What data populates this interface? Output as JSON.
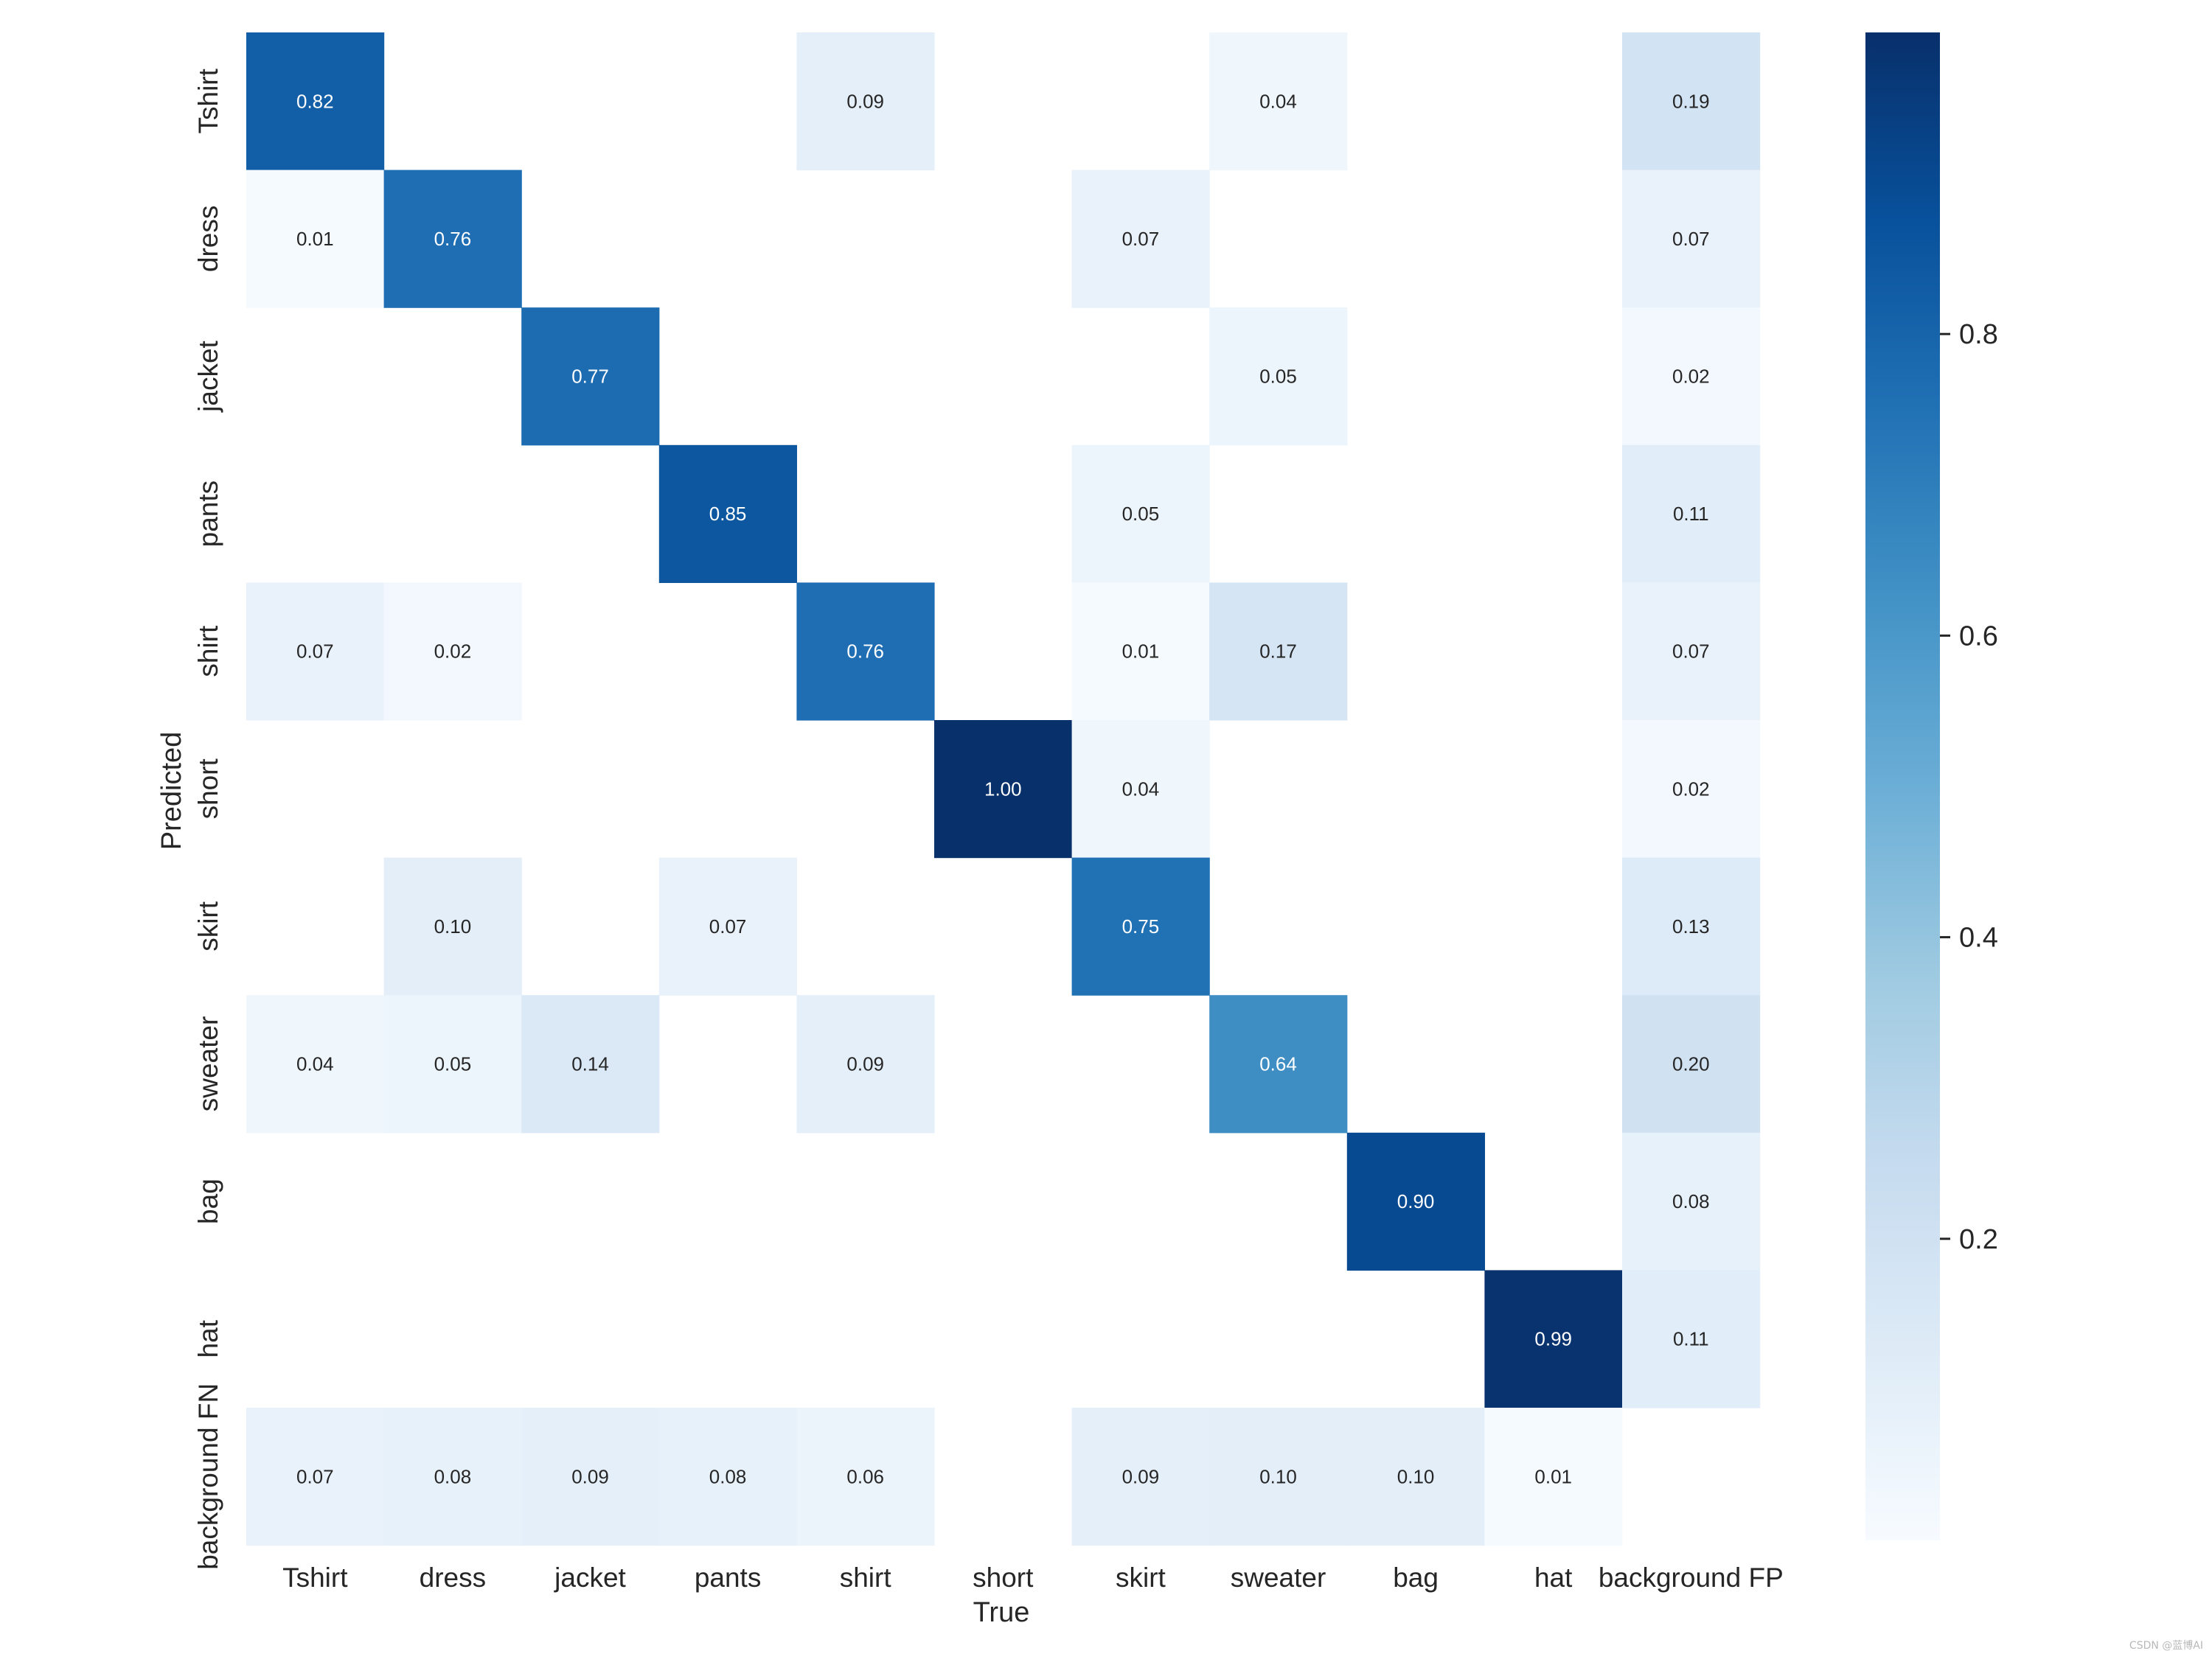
{
  "chart_data": {
    "type": "heatmap",
    "title": "",
    "xlabel": "True",
    "ylabel": "Predicted",
    "x_categories": [
      "Tshirt",
      "dress",
      "jacket",
      "pants",
      "shirt",
      "short",
      "skirt",
      "sweater",
      "bag",
      "hat",
      "background FP"
    ],
    "y_categories": [
      "Tshirt",
      "dress",
      "jacket",
      "pants",
      "shirt",
      "short",
      "skirt",
      "sweater",
      "bag",
      "hat",
      "background FN"
    ],
    "values": [
      [
        0.82,
        null,
        null,
        null,
        0.09,
        null,
        null,
        0.04,
        null,
        null,
        0.19
      ],
      [
        0.01,
        0.76,
        null,
        null,
        null,
        null,
        0.07,
        null,
        null,
        null,
        0.07
      ],
      [
        null,
        null,
        0.77,
        null,
        null,
        null,
        null,
        0.05,
        null,
        null,
        0.02
      ],
      [
        null,
        null,
        null,
        0.85,
        null,
        null,
        0.05,
        null,
        null,
        null,
        0.11
      ],
      [
        0.07,
        0.02,
        null,
        null,
        0.76,
        null,
        0.01,
        0.17,
        null,
        null,
        0.07
      ],
      [
        null,
        null,
        null,
        null,
        null,
        1.0,
        0.04,
        null,
        null,
        null,
        0.02
      ],
      [
        null,
        0.1,
        null,
        0.07,
        null,
        null,
        0.75,
        null,
        null,
        null,
        0.13
      ],
      [
        0.04,
        0.05,
        0.14,
        null,
        0.09,
        null,
        null,
        0.64,
        null,
        null,
        0.2
      ],
      [
        null,
        null,
        null,
        null,
        null,
        null,
        null,
        null,
        0.9,
        null,
        0.08
      ],
      [
        null,
        null,
        null,
        null,
        null,
        null,
        null,
        null,
        null,
        0.99,
        0.11
      ],
      [
        0.07,
        0.08,
        0.09,
        0.08,
        0.06,
        null,
        0.09,
        0.1,
        0.1,
        0.01,
        null
      ]
    ],
    "value_format": "0.00",
    "colormap": "Blues",
    "colorbar": {
      "range": [
        0.0,
        1.0
      ],
      "ticks": [
        0.2,
        0.4,
        0.6,
        0.8
      ],
      "tick_labels": [
        "0.2",
        "0.4",
        "0.6",
        "0.8"
      ]
    },
    "grid": false,
    "legend": "colorbar-right"
  },
  "colors": {
    "blues": [
      "#f7fbff",
      "#deebf7",
      "#c6dbef",
      "#9ecae1",
      "#6baed6",
      "#4292c6",
      "#2171b5",
      "#08519c",
      "#08306b"
    ],
    "label_text": "#262626"
  },
  "watermark": "CSDN @蓝博AI"
}
